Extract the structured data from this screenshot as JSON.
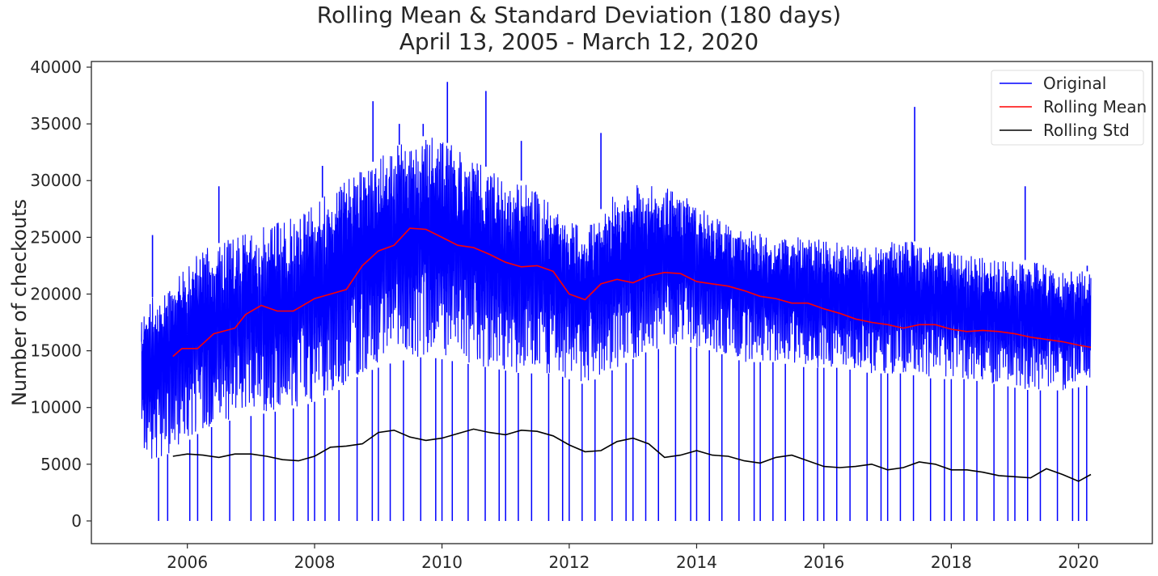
{
  "chart_data": {
    "type": "line",
    "title": "Rolling Mean & Standard Deviation (180 days)",
    "subtitle": "April 13, 2005 - March 12, 2020",
    "xlabel": "",
    "ylabel": "Number of checkouts",
    "xlim": [
      "2005-04-13",
      "2020-03-12"
    ],
    "ylim": [
      -2000,
      40500
    ],
    "x_ticks": [
      "2006",
      "2008",
      "2010",
      "2012",
      "2014",
      "2016",
      "2018",
      "2020"
    ],
    "y_ticks": [
      "0",
      "5000",
      "10000",
      "15000",
      "20000",
      "25000",
      "30000",
      "35000",
      "40000"
    ],
    "grid": false,
    "legend_position": "top-right",
    "series": [
      {
        "name": "Original",
        "color": "#0000ff",
        "style": "band",
        "x": [
          "2005-04-13",
          "2005-10-01",
          "2006-04-01",
          "2006-10-01",
          "2007-04-01",
          "2007-10-01",
          "2008-04-01",
          "2008-10-01",
          "2009-04-01",
          "2009-10-01",
          "2010-04-01",
          "2010-10-01",
          "2011-04-01",
          "2011-10-01",
          "2012-04-01",
          "2012-10-01",
          "2013-04-01",
          "2013-10-01",
          "2014-04-01",
          "2014-10-01",
          "2015-04-01",
          "2015-10-01",
          "2016-04-01",
          "2016-10-01",
          "2017-04-01",
          "2017-10-01",
          "2018-04-01",
          "2018-10-01",
          "2019-04-01",
          "2019-10-01",
          "2020-03-12"
        ],
        "lower": [
          5000,
          6000,
          8000,
          9000,
          9500,
          10000,
          11000,
          13000,
          14000,
          14500,
          14000,
          13500,
          13000,
          13000,
          12000,
          13500,
          15000,
          15500,
          15000,
          14000,
          14000,
          13500,
          13500,
          13000,
          13000,
          12500,
          12500,
          12000,
          11500,
          11500,
          12000
        ],
        "upper": [
          19000,
          21000,
          24000,
          25000,
          26000,
          27000,
          29000,
          31000,
          33000,
          34000,
          33000,
          31000,
          30000,
          28000,
          26000,
          29000,
          30000,
          29000,
          27000,
          26000,
          25000,
          25000,
          24500,
          24000,
          25000,
          24000,
          23500,
          23000,
          23000,
          22000,
          22000
        ],
        "peaks": [
          {
            "x": "2008-12-01",
            "y": 37000
          },
          {
            "x": "2009-05-01",
            "y": 35000
          },
          {
            "x": "2009-09-15",
            "y": 35000
          },
          {
            "x": "2010-02-01",
            "y": 38700
          },
          {
            "x": "2010-09-10",
            "y": 37900
          },
          {
            "x": "2012-07-01",
            "y": 34200
          },
          {
            "x": "2017-06-05",
            "y": 36500
          },
          {
            "x": "2019-03-01",
            "y": 29500
          },
          {
            "x": "2006-07-01",
            "y": 29500
          },
          {
            "x": "2008-02-15",
            "y": 31300
          },
          {
            "x": "2011-04-01",
            "y": 33500
          },
          {
            "x": "2005-06-15",
            "y": 25200
          },
          {
            "x": "2020-02-20",
            "y": 22500
          }
        ],
        "dips_to_zero": [
          "2005-07-20",
          "2005-09-10",
          "2006-01-15",
          "2006-03-01",
          "2006-05-20",
          "2006-09-01",
          "2007-01-01",
          "2007-03-15",
          "2007-05-20",
          "2007-09-01",
          "2007-11-25",
          "2008-01-01",
          "2008-03-01",
          "2008-05-20",
          "2008-09-01",
          "2008-11-27",
          "2009-01-01",
          "2009-03-10",
          "2009-05-25",
          "2009-09-01",
          "2009-11-26",
          "2010-01-01",
          "2010-03-01",
          "2010-05-31",
          "2010-09-06",
          "2010-11-25",
          "2011-01-01",
          "2011-03-15",
          "2011-05-30",
          "2011-09-05",
          "2011-11-24",
          "2012-01-01",
          "2012-03-15",
          "2012-05-28",
          "2012-09-03",
          "2012-11-22",
          "2013-01-01",
          "2013-03-15",
          "2013-05-27",
          "2013-09-02",
          "2013-11-28",
          "2014-01-01",
          "2014-03-15",
          "2014-05-26",
          "2014-09-01",
          "2014-11-27",
          "2015-01-01",
          "2015-03-15",
          "2015-05-25",
          "2015-09-07",
          "2015-11-26",
          "2016-01-01",
          "2016-03-15",
          "2016-05-30",
          "2016-09-05",
          "2016-11-24",
          "2017-01-01",
          "2017-03-15",
          "2017-05-29",
          "2017-09-04",
          "2017-11-23",
          "2018-01-01",
          "2018-03-15",
          "2018-05-28",
          "2018-09-03",
          "2018-11-22",
          "2019-01-01",
          "2019-03-15",
          "2019-05-27",
          "2019-09-02",
          "2019-11-28",
          "2020-01-01",
          "2020-02-17"
        ]
      },
      {
        "name": "Rolling Mean",
        "color": "#ff0000",
        "x": [
          "2005-10-10",
          "2005-12-01",
          "2006-03-01",
          "2006-06-01",
          "2006-10-01",
          "2006-12-01",
          "2007-03-01",
          "2007-06-01",
          "2007-09-01",
          "2008-01-01",
          "2008-04-01",
          "2008-07-01",
          "2008-10-01",
          "2009-01-01",
          "2009-04-01",
          "2009-07-01",
          "2009-10-01",
          "2010-01-01",
          "2010-04-01",
          "2010-07-01",
          "2010-10-01",
          "2011-01-01",
          "2011-04-01",
          "2011-07-01",
          "2011-10-01",
          "2012-01-01",
          "2012-04-01",
          "2012-07-01",
          "2012-10-01",
          "2013-01-01",
          "2013-04-01",
          "2013-07-01",
          "2013-10-01",
          "2014-01-01",
          "2014-04-01",
          "2014-07-01",
          "2014-10-01",
          "2015-01-01",
          "2015-04-01",
          "2015-07-01",
          "2015-10-01",
          "2016-01-01",
          "2016-04-01",
          "2016-07-01",
          "2016-10-01",
          "2017-01-01",
          "2017-04-01",
          "2017-07-01",
          "2017-10-01",
          "2018-01-01",
          "2018-04-01",
          "2018-07-01",
          "2018-10-01",
          "2019-01-01",
          "2019-04-01",
          "2019-07-01",
          "2019-10-01",
          "2020-01-01",
          "2020-03-12"
        ],
        "y": [
          14500,
          15200,
          15200,
          16500,
          17000,
          18200,
          19000,
          18500,
          18500,
          19600,
          20000,
          20400,
          22500,
          23800,
          24300,
          25800,
          25700,
          25000,
          24300,
          24100,
          23500,
          22800,
          22400,
          22500,
          22000,
          20000,
          19500,
          20900,
          21300,
          21000,
          21600,
          21900,
          21800,
          21100,
          20900,
          20700,
          20300,
          19800,
          19600,
          19200,
          19200,
          18700,
          18300,
          17800,
          17500,
          17300,
          17000,
          17300,
          17300,
          16900,
          16700,
          16800,
          16700,
          16500,
          16200,
          16000,
          15800,
          15500,
          15300
        ]
      },
      {
        "name": "Rolling Std",
        "color": "#000000",
        "x": [
          "2005-10-10",
          "2006-01-01",
          "2006-04-01",
          "2006-07-01",
          "2006-10-01",
          "2007-01-01",
          "2007-04-01",
          "2007-07-01",
          "2007-10-01",
          "2008-01-01",
          "2008-04-01",
          "2008-07-01",
          "2008-10-01",
          "2009-01-01",
          "2009-04-01",
          "2009-07-01",
          "2009-10-01",
          "2010-01-01",
          "2010-04-01",
          "2010-07-01",
          "2010-10-01",
          "2011-01-01",
          "2011-04-01",
          "2011-07-01",
          "2011-10-01",
          "2012-01-01",
          "2012-04-01",
          "2012-07-01",
          "2012-10-01",
          "2013-01-01",
          "2013-04-01",
          "2013-07-01",
          "2013-10-01",
          "2014-01-01",
          "2014-04-01",
          "2014-07-01",
          "2014-10-01",
          "2015-01-01",
          "2015-04-01",
          "2015-07-01",
          "2015-10-01",
          "2016-01-01",
          "2016-04-01",
          "2016-07-01",
          "2016-10-01",
          "2017-01-01",
          "2017-04-01",
          "2017-07-01",
          "2017-10-01",
          "2018-01-01",
          "2018-04-01",
          "2018-07-01",
          "2018-10-01",
          "2019-01-01",
          "2019-04-01",
          "2019-07-01",
          "2019-10-01",
          "2020-01-01",
          "2020-03-12"
        ],
        "y": [
          5700,
          5900,
          5800,
          5600,
          5900,
          5900,
          5700,
          5400,
          5300,
          5700,
          6500,
          6600,
          6800,
          7800,
          8000,
          7400,
          7100,
          7300,
          7700,
          8100,
          7800,
          7600,
          8000,
          7900,
          7500,
          6700,
          6100,
          6200,
          7000,
          7300,
          6800,
          5600,
          5800,
          6200,
          5800,
          5700,
          5300,
          5100,
          5600,
          5800,
          5300,
          4800,
          4700,
          4800,
          5000,
          4500,
          4700,
          5200,
          5000,
          4500,
          4500,
          4300,
          4000,
          3900,
          3800,
          4600,
          4100,
          3500,
          4100
        ]
      }
    ]
  }
}
